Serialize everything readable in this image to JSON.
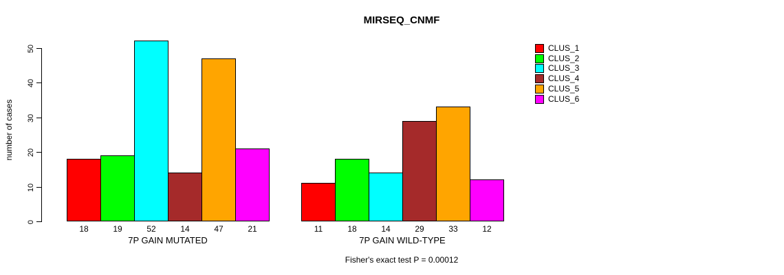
{
  "chart_data": {
    "type": "bar",
    "title": "MIRSEQ_CNMF",
    "ylabel": "number of cases",
    "xlabel": "",
    "ylim": [
      0,
      52
    ],
    "yticks": [
      0,
      10,
      20,
      30,
      40,
      50
    ],
    "grid": false,
    "legend_position": "right",
    "categories": [
      "7P GAIN MUTATED",
      "7P GAIN WILD-TYPE"
    ],
    "series": [
      {
        "name": "CLUS_1",
        "color": "#FF0000",
        "values": [
          18,
          11
        ]
      },
      {
        "name": "CLUS_2",
        "color": "#00FF00",
        "values": [
          19,
          18
        ]
      },
      {
        "name": "CLUS_3",
        "color": "#00FFFF",
        "values": [
          52,
          14
        ]
      },
      {
        "name": "CLUS_4",
        "color": "#A52A2A",
        "values": [
          14,
          29
        ]
      },
      {
        "name": "CLUS_5",
        "color": "#FFA500",
        "values": [
          47,
          33
        ]
      },
      {
        "name": "CLUS_6",
        "color": "#FF00FF",
        "values": [
          21,
          12
        ]
      }
    ],
    "bar_value_labels": [
      [
        18,
        19,
        52,
        14,
        47,
        21
      ],
      [
        11,
        18,
        14,
        29,
        33,
        12
      ]
    ],
    "annotation": "Fisher's exact test P = 0.00012",
    "axis_color": "#000000",
    "bar_border_color": "#000000"
  }
}
